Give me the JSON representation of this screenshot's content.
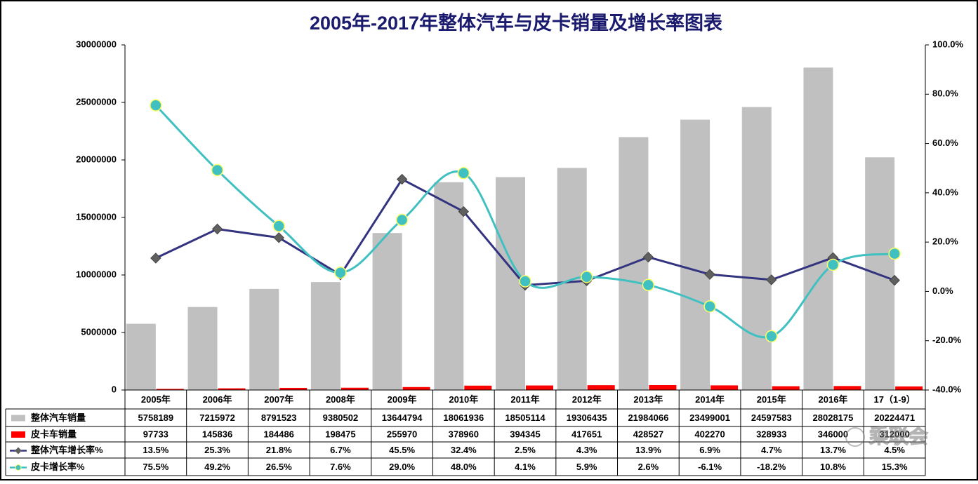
{
  "chart_data": {
    "type": "bar",
    "title": "2005年-2017年整体汽车与皮卡销量及增长率图表",
    "categories": [
      "2005年",
      "2006年",
      "2007年",
      "2008年",
      "2009年",
      "2010年",
      "2011年",
      "2012年",
      "2013年",
      "2014年",
      "2015年",
      "2016年",
      "17（1-9）"
    ],
    "series": [
      {
        "name": "整体汽车销量",
        "type": "bar",
        "color": "#c0c0c0",
        "values": [
          5758189,
          7215972,
          8791523,
          9380502,
          13644794,
          18061936,
          18505114,
          19306435,
          21984066,
          23499001,
          24597583,
          28028175,
          20224471
        ]
      },
      {
        "name": "皮卡车销量",
        "type": "bar",
        "color": "#ff0000",
        "values": [
          97733,
          145836,
          184486,
          198475,
          255970,
          378960,
          394345,
          417651,
          428527,
          402270,
          328933,
          346000,
          312000
        ]
      },
      {
        "name": "整体汽车增长率%",
        "type": "line",
        "axis": "y2",
        "color": "#333380",
        "marker_color": "#606060",
        "values": [
          13.5,
          25.3,
          21.8,
          6.7,
          45.5,
          32.4,
          2.5,
          4.3,
          13.9,
          6.9,
          4.7,
          13.7,
          4.5
        ],
        "value_labels": [
          "13.5%",
          "25.3%",
          "21.8%",
          "6.7%",
          "45.5%",
          "32.4%",
          "2.5%",
          "4.3%",
          "13.9%",
          "6.9%",
          "4.7%",
          "13.7%",
          "4.5%"
        ]
      },
      {
        "name": "皮卡增长率%",
        "type": "line",
        "axis": "y2",
        "color": "#40c0c0",
        "marker_color": "#ffff66",
        "values": [
          75.5,
          49.2,
          26.5,
          7.6,
          29.0,
          48.0,
          4.1,
          5.9,
          2.6,
          -6.1,
          -18.2,
          10.8,
          15.3
        ],
        "value_labels": [
          "75.5%",
          "49.2%",
          "26.5%",
          "7.6%",
          "29.0%",
          "48.0%",
          "4.1%",
          "5.9%",
          "2.6%",
          "-6.1%",
          "-18.2%",
          "10.8%",
          "15.3%"
        ]
      }
    ],
    "ylim": [
      0,
      30000000
    ],
    "yticks": [
      0,
      5000000,
      10000000,
      15000000,
      20000000,
      25000000,
      30000000
    ],
    "y2lim": [
      -40,
      100
    ],
    "y2ticks": [
      {
        "value": -40,
        "label": "-40.0%"
      },
      {
        "value": -20,
        "label": "-20.0%"
      },
      {
        "value": 0,
        "label": "0.0%"
      },
      {
        "value": 20,
        "label": "20.0%"
      },
      {
        "value": 40,
        "label": "40.0%"
      },
      {
        "value": 60,
        "label": "60.0%"
      },
      {
        "value": 80,
        "label": "80.0%"
      },
      {
        "value": 100,
        "label": "100.0%"
      }
    ],
    "watermark": "乘联会"
  }
}
